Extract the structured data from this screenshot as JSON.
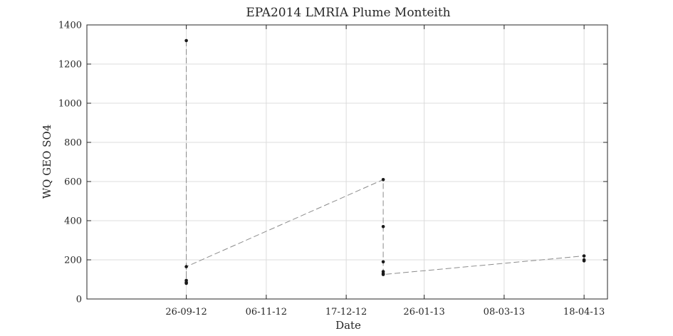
{
  "chart_data": {
    "type": "line",
    "title": "EPA2014 LMRIA Plume Monteith",
    "xlabel": "Date",
    "ylabel": "WQ GEO SO4",
    "x_axis_type": "date",
    "xlim": [
      "2012-08-06",
      "2013-04-30"
    ],
    "ylim": [
      0,
      1400
    ],
    "grid": true,
    "x_ticks": [
      {
        "date": "2012-09-26",
        "label": "26-09-12"
      },
      {
        "date": "2012-11-06",
        "label": "06-11-12"
      },
      {
        "date": "2012-12-17",
        "label": "17-12-12"
      },
      {
        "date": "2013-01-26",
        "label": "26-01-13"
      },
      {
        "date": "2013-03-08",
        "label": "08-03-13"
      },
      {
        "date": "2013-04-18",
        "label": "18-04-13"
      }
    ],
    "y_ticks": [
      0,
      200,
      400,
      600,
      800,
      1000,
      1200,
      1400
    ],
    "series": [
      {
        "color": "#8c8c8c",
        "marker_color": "#1a1a1a",
        "line_style": "dashed",
        "points": [
          {
            "x": "2012-09-26",
            "y": 1320
          },
          {
            "x": "2012-09-26",
            "y": 95
          },
          {
            "x": "2012-09-26",
            "y": 85
          },
          {
            "x": "2012-09-26",
            "y": 80
          },
          {
            "x": "2012-09-26",
            "y": 165
          },
          {
            "x": "2013-01-05",
            "y": 610
          },
          {
            "x": "2013-01-05",
            "y": 370
          },
          {
            "x": "2013-01-05",
            "y": 190
          },
          {
            "x": "2013-01-05",
            "y": 140
          },
          {
            "x": "2013-01-05",
            "y": 130
          },
          {
            "x": "2013-01-05",
            "y": 125
          },
          {
            "x": "2013-04-18",
            "y": 220
          },
          {
            "x": "2013-04-18",
            "y": 195
          },
          {
            "x": "2013-04-18",
            "y": 200
          }
        ]
      }
    ]
  }
}
